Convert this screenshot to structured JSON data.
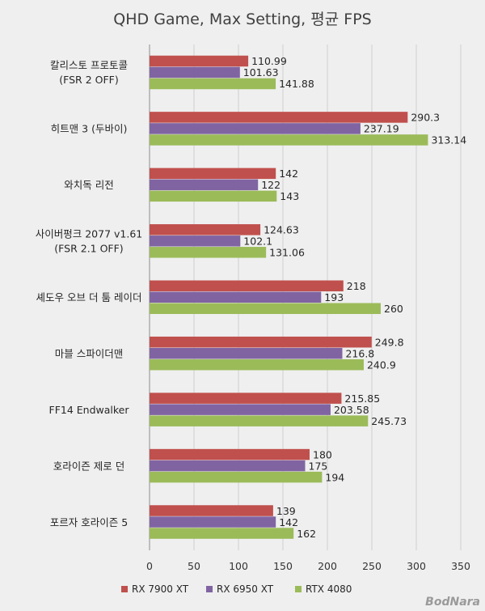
{
  "chart_data": {
    "type": "bar",
    "orientation": "horizontal",
    "title": "QHD Game, Max Setting, 평균 FPS",
    "categories": [
      [
        "칼리스토 프로토콜",
        "(FSR 2 OFF)"
      ],
      [
        "히트맨 3 (두바이)"
      ],
      [
        "와치독 리전"
      ],
      [
        "사이버펑크 2077 v1.61",
        "(FSR 2.1 OFF)"
      ],
      [
        "셰도우 오브 더 툼 레이더"
      ],
      [
        "마블 스파이더맨"
      ],
      [
        "FF14 Endwalker"
      ],
      [
        "호라이즌 제로 던"
      ],
      [
        "포르자 호라이즌 5"
      ]
    ],
    "series": [
      {
        "name": "RX 7900 XT",
        "color": "#c0504d",
        "values": [
          110.99,
          290.3,
          142,
          124.63,
          218,
          249.8,
          215.85,
          180,
          139
        ],
        "labels": [
          "110.99",
          "290.3",
          "142",
          "124.63",
          "218",
          "249.8",
          "215.85",
          "180",
          "139"
        ]
      },
      {
        "name": "RX 6950 XT",
        "color": "#8064a2",
        "values": [
          101.63,
          237.19,
          122,
          102.1,
          193,
          216.8,
          203.58,
          175,
          142
        ],
        "labels": [
          "101.63",
          "237.19",
          "122",
          "102.1",
          "193",
          "216.8",
          "203.58",
          "175",
          "142"
        ]
      },
      {
        "name": "RTX 4080",
        "color": "#9bbb59",
        "values": [
          141.88,
          313.14,
          143,
          131.06,
          260,
          240.9,
          245.73,
          194,
          162
        ],
        "labels": [
          "141.88",
          "313.14",
          "143",
          "131.06",
          "260",
          "240.9",
          "245.73",
          "194",
          "162"
        ]
      }
    ],
    "xlim": [
      0,
      350
    ],
    "xticks": [
      0,
      50,
      100,
      150,
      200,
      250,
      300,
      350
    ],
    "xtick_labels": [
      "0",
      "50",
      "100",
      "150",
      "200",
      "250",
      "300",
      "350"
    ],
    "grid": true,
    "legend_position": "bottom"
  },
  "watermark": "BodNara"
}
